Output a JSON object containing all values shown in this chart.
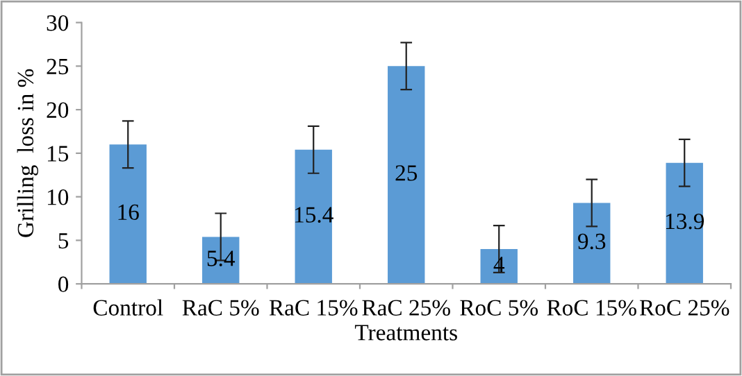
{
  "chart_data": {
    "type": "bar",
    "xlabel": "Treatments",
    "ylabel": "Grilling  loss in %",
    "categories": [
      "Control",
      "RaC 5%",
      "RaC 15%",
      "RaC 25%",
      "RoC 5%",
      "RoC 15%",
      "RoC 25%"
    ],
    "values": [
      16,
      5.4,
      15.4,
      25,
      4,
      9.3,
      13.9
    ],
    "errors": [
      2.7,
      2.7,
      2.7,
      2.7,
      2.7,
      2.7,
      2.7
    ],
    "color": "#5b9bd5",
    "ylim": [
      0,
      30
    ],
    "yticks": [
      0,
      5,
      10,
      15,
      20,
      25,
      30
    ],
    "grid": false,
    "data_labels": true
  }
}
